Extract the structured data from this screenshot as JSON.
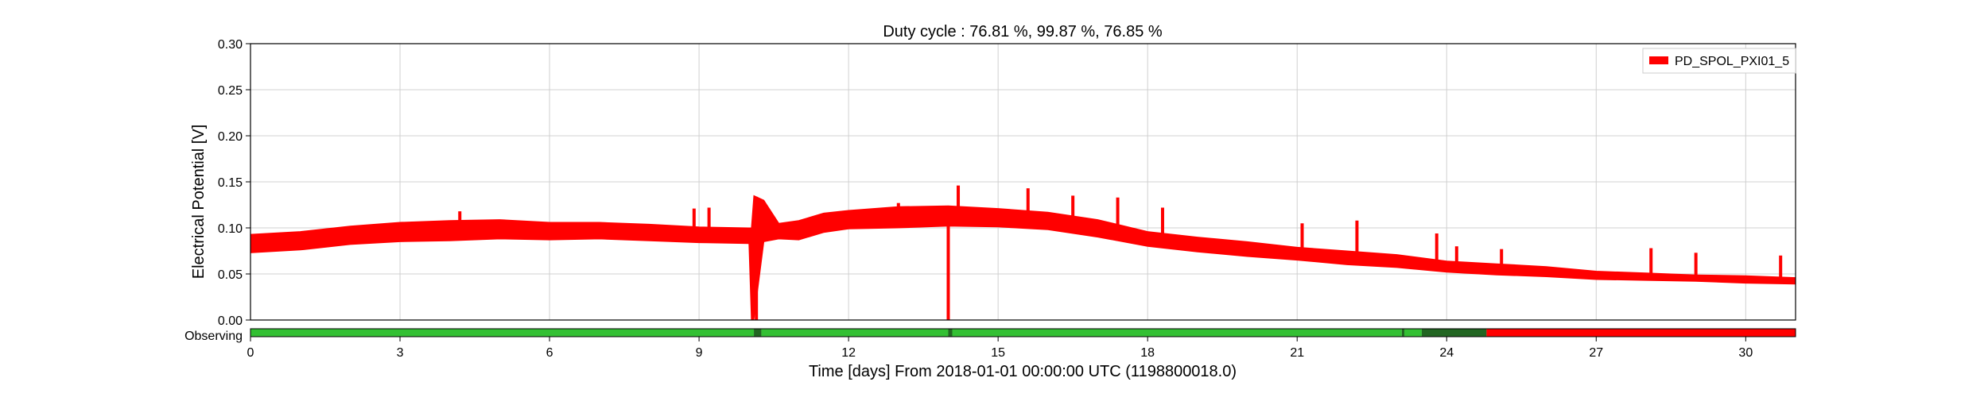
{
  "chart_data": {
    "type": "line",
    "title": "Duty cycle : 76.81 %, 99.87 %, 76.85 %",
    "xlabel": "Time [days] From 2018-01-01 00:00:00 UTC (1198800018.0)",
    "ylabel": "Electrical Potential [V]",
    "xlim": [
      0,
      31
    ],
    "ylim": [
      0,
      0.3
    ],
    "grid": true,
    "legend": "top-right",
    "x_ticks": [
      0,
      3,
      6,
      9,
      12,
      15,
      18,
      21,
      24,
      27,
      30
    ],
    "x_tick_labels": [
      "0",
      "3",
      "6",
      "9",
      "12",
      "15",
      "18",
      "21",
      "24",
      "27",
      "30"
    ],
    "y_ticks": [
      0,
      0.05,
      0.1,
      0.15,
      0.2,
      0.25,
      0.3
    ],
    "y_tick_labels": [
      "0.00",
      "0.05",
      "0.10",
      "0.15",
      "0.20",
      "0.25",
      "0.30"
    ],
    "series": [
      {
        "name": "PD_SPOL_PXI01_5",
        "color": "#ff0000",
        "x": [
          0,
          1,
          2,
          3,
          4,
          5,
          6,
          7,
          8,
          9,
          10,
          10.05,
          10.1,
          10.3,
          10.6,
          11,
          11.5,
          12,
          13,
          14,
          15,
          16,
          17,
          18,
          19,
          20,
          21,
          22,
          23,
          24,
          25,
          26,
          27,
          28,
          29,
          30,
          31
        ],
        "y_low": [
          0.073,
          0.076,
          0.082,
          0.085,
          0.086,
          0.088,
          0.087,
          0.088,
          0.086,
          0.084,
          0.083,
          0.0,
          0.0,
          0.085,
          0.088,
          0.087,
          0.095,
          0.099,
          0.1,
          0.102,
          0.101,
          0.098,
          0.09,
          0.08,
          0.074,
          0.069,
          0.065,
          0.06,
          0.057,
          0.052,
          0.049,
          0.047,
          0.044,
          0.043,
          0.042,
          0.04,
          0.039
        ],
        "y_high": [
          0.093,
          0.096,
          0.102,
          0.106,
          0.108,
          0.109,
          0.106,
          0.106,
          0.104,
          0.101,
          0.1,
          0.1,
          0.135,
          0.13,
          0.105,
          0.108,
          0.116,
          0.119,
          0.123,
          0.124,
          0.121,
          0.117,
          0.109,
          0.096,
          0.09,
          0.085,
          0.079,
          0.075,
          0.071,
          0.064,
          0.061,
          0.058,
          0.053,
          0.051,
          0.049,
          0.048,
          0.046
        ],
        "spikes": [
          {
            "x": 4.2,
            "y": 0.118
          },
          {
            "x": 8.9,
            "y": 0.121
          },
          {
            "x": 9.2,
            "y": 0.122
          },
          {
            "x": 10.15,
            "y": 0.0
          },
          {
            "x": 13.0,
            "y": 0.127
          },
          {
            "x": 14.0,
            "y": 0.0
          },
          {
            "x": 14.2,
            "y": 0.146
          },
          {
            "x": 15.6,
            "y": 0.143
          },
          {
            "x": 16.5,
            "y": 0.135
          },
          {
            "x": 17.4,
            "y": 0.133
          },
          {
            "x": 18.3,
            "y": 0.122
          },
          {
            "x": 21.1,
            "y": 0.105
          },
          {
            "x": 22.2,
            "y": 0.108
          },
          {
            "x": 23.8,
            "y": 0.094
          },
          {
            "x": 24.2,
            "y": 0.08
          },
          {
            "x": 25.1,
            "y": 0.077
          },
          {
            "x": 28.1,
            "y": 0.078
          },
          {
            "x": 29.0,
            "y": 0.073
          },
          {
            "x": 30.7,
            "y": 0.07
          }
        ]
      }
    ],
    "state_bar": {
      "label": "Observing",
      "on_color": "#33c033",
      "off_color": "#ff0000",
      "dark_color": "#226622",
      "segments": [
        {
          "start": 0,
          "end": 10.1,
          "state": "on"
        },
        {
          "start": 10.1,
          "end": 10.25,
          "state": "dark"
        },
        {
          "start": 10.25,
          "end": 14.0,
          "state": "on"
        },
        {
          "start": 14.0,
          "end": 14.08,
          "state": "dark"
        },
        {
          "start": 14.08,
          "end": 23.1,
          "state": "on"
        },
        {
          "start": 23.1,
          "end": 23.15,
          "state": "dark"
        },
        {
          "start": 23.15,
          "end": 23.5,
          "state": "on"
        },
        {
          "start": 23.5,
          "end": 24.8,
          "state": "dark"
        },
        {
          "start": 24.8,
          "end": 31,
          "state": "off"
        }
      ]
    }
  }
}
